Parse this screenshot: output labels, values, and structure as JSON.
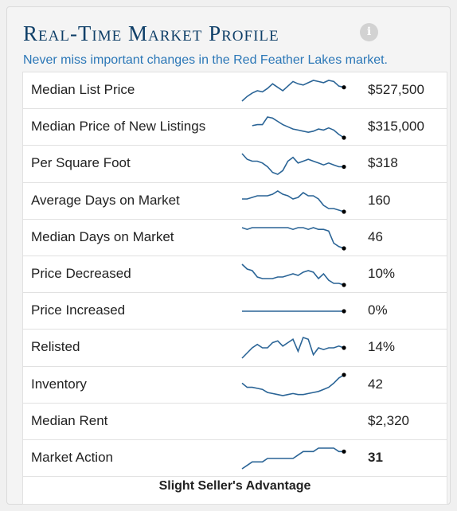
{
  "title": "Real-Time Market Profile",
  "subtitle": "Never miss important changes in the Red Feather Lakes market.",
  "info_icon": "info-icon",
  "colors": {
    "title": "#0f3f68",
    "subtitle": "#2b77b7",
    "sparkline": "#2a6496",
    "dot": "#000000"
  },
  "metrics": [
    {
      "label": "Median List Price",
      "value": "$527,500",
      "trend": [
        16,
        20,
        23,
        25,
        24,
        27,
        31,
        28,
        25,
        29,
        33,
        31,
        30,
        32,
        34,
        33,
        32,
        34,
        33,
        29,
        28
      ]
    },
    {
      "label": "Median Price of New Listings",
      "value": "$315,000",
      "trend": [
        null,
        null,
        23,
        24,
        24,
        31,
        30,
        27,
        24,
        22,
        20,
        19,
        18,
        17,
        18,
        20,
        19,
        21,
        19,
        15,
        12
      ]
    },
    {
      "label": "Per Square Foot",
      "value": "$318",
      "trend": [
        31,
        28,
        27,
        27,
        26,
        24,
        21,
        20,
        22,
        27,
        29,
        26,
        27,
        28,
        27,
        26,
        25,
        26,
        25,
        24,
        24
      ]
    },
    {
      "label": "Average Days on Market",
      "value": "160",
      "trend": [
        26,
        26,
        27,
        28,
        28,
        28,
        29,
        31,
        29,
        28,
        26,
        27,
        30,
        28,
        28,
        26,
        22,
        20,
        20,
        19,
        18
      ]
    },
    {
      "label": "Median Days on Market",
      "value": "46",
      "trend": [
        27,
        26,
        27,
        27,
        27,
        27,
        27,
        27,
        27,
        27,
        26,
        27,
        27,
        26,
        27,
        26,
        26,
        25,
        18,
        16,
        15
      ]
    },
    {
      "label": "Price Decreased",
      "value": "10%",
      "trend": [
        31,
        28,
        27,
        23,
        22,
        22,
        22,
        23,
        23,
        24,
        25,
        24,
        26,
        27,
        26,
        22,
        25,
        21,
        19,
        19,
        18
      ]
    },
    {
      "label": "Price Increased",
      "value": "0%",
      "trend": [
        0,
        0,
        0,
        0,
        0,
        0,
        0,
        0,
        0,
        0,
        0,
        0,
        0,
        0,
        0,
        0,
        0,
        0,
        0,
        0,
        0
      ]
    },
    {
      "label": "Relisted",
      "value": "14%",
      "trend": [
        14,
        17,
        20,
        22,
        20,
        20,
        23,
        24,
        21,
        23,
        25,
        18,
        26,
        25,
        16,
        20,
        19,
        20,
        20,
        21,
        20
      ]
    },
    {
      "label": "Inventory",
      "value": "42",
      "trend": [
        48,
        44,
        44,
        43,
        42,
        39,
        38,
        37,
        36,
        37,
        38,
        37,
        37,
        38,
        39,
        40,
        42,
        44,
        48,
        53,
        56
      ]
    },
    {
      "label": "Median Rent",
      "value": "$2,320",
      "trend": []
    },
    {
      "label": "Market Action",
      "value": "31",
      "value_bold": true,
      "trend": [
        26,
        27,
        28,
        28,
        28,
        29,
        29,
        29,
        29,
        29,
        29,
        30,
        31,
        31,
        31,
        32,
        32,
        32,
        32,
        31,
        31
      ]
    }
  ],
  "footer": "Slight Seller's Advantage"
}
